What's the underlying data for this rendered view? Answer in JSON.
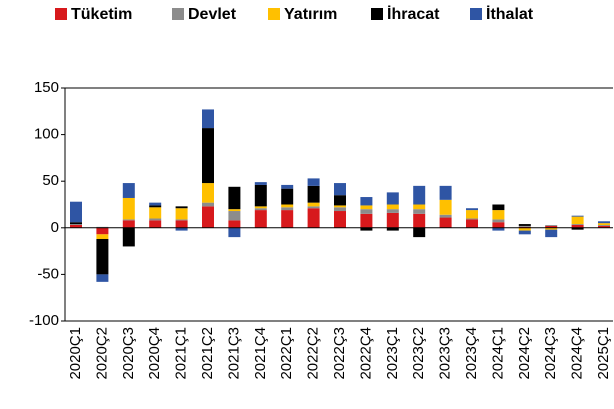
{
  "chart_data": {
    "type": "bar",
    "stacked": true,
    "categories": [
      "2020Ç1",
      "2020Ç2",
      "2020Ç3",
      "2020Ç4",
      "2021Ç1",
      "2021Ç2",
      "2021Ç3",
      "2021Ç4",
      "2022Ç1",
      "2022Ç2",
      "2022Ç3",
      "2022Ç4",
      "2023Ç1",
      "2023Ç2",
      "2023Ç3",
      "2023Ç4",
      "2024Ç1",
      "2024Ç2",
      "2024Ç3",
      "2024Ç4",
      "2025Ç1"
    ],
    "series": [
      {
        "name": "Tüketim",
        "color": "#d7191c",
        "values": [
          3,
          -7,
          8,
          8,
          8,
          23,
          8,
          19,
          19,
          21,
          18,
          15,
          16,
          15,
          11,
          9,
          6,
          1,
          2,
          3,
          2
        ]
      },
      {
        "name": "Devlet",
        "color": "#8c8c8c",
        "values": [
          1,
          1,
          1,
          2,
          1,
          4,
          10,
          2,
          3,
          2,
          4,
          5,
          4,
          5,
          3,
          1,
          3,
          1,
          1,
          1,
          1
        ]
      },
      {
        "name": "Yatırım",
        "color": "#ffc000",
        "values": [
          0,
          -5,
          23,
          12,
          12,
          21,
          2,
          2,
          3,
          4,
          2,
          4,
          5,
          5,
          16,
          9,
          10,
          -3,
          -2,
          8,
          2
        ]
      },
      {
        "name": "İhracat",
        "color": "#000000",
        "values": [
          2,
          -38,
          -20,
          2,
          2,
          59,
          24,
          23,
          17,
          18,
          11,
          -3,
          -3,
          -10,
          0,
          0,
          6,
          2,
          0,
          -2,
          0
        ]
      },
      {
        "name": "İthalat",
        "color": "#2f55a4",
        "values": [
          22,
          -8,
          16,
          3,
          -3,
          20,
          -10,
          3,
          4,
          8,
          13,
          9,
          13,
          20,
          15,
          2,
          -3,
          -4,
          -8,
          1,
          2
        ]
      }
    ],
    "ylim": [
      -100,
      150
    ],
    "yticks": [
      -100,
      -50,
      0,
      50,
      100,
      150
    ],
    "legend": "top"
  }
}
